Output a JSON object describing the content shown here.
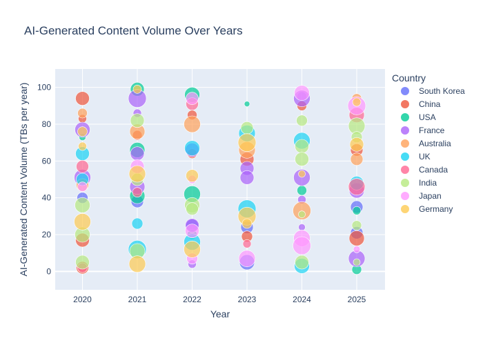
{
  "chart_data": {
    "type": "scatter",
    "title": "AI-Generated Content Volume Over Years",
    "xlabel": "Year",
    "ylabel": "AI-Generated Content Volume (TBs per year)",
    "x_categories": [
      "2020",
      "2021",
      "2022",
      "2023",
      "2024",
      "2025"
    ],
    "ylim": [
      -10,
      110
    ],
    "yticks": [
      0,
      20,
      40,
      60,
      80,
      100
    ],
    "grid": true,
    "legend_title": "Country",
    "legend_position": "right",
    "series": [
      {
        "name": "South Korea",
        "color": "#636efa",
        "points": [
          {
            "x": "2020",
            "y": 40,
            "size": 16
          },
          {
            "x": "2021",
            "y": 38,
            "size": 18
          },
          {
            "x": "2022",
            "y": 25,
            "size": 18
          },
          {
            "x": "2023",
            "y": 24,
            "size": 18
          },
          {
            "x": "2023",
            "y": 5,
            "size": 22
          },
          {
            "x": "2024",
            "y": 95,
            "size": 14
          },
          {
            "x": "2025",
            "y": 35,
            "size": 18
          },
          {
            "x": "2025",
            "y": 21,
            "size": 18
          }
        ]
      },
      {
        "name": "China",
        "color": "#ef553b",
        "points": [
          {
            "x": "2020",
            "y": 94,
            "size": 20
          },
          {
            "x": "2020",
            "y": 83,
            "size": 12
          },
          {
            "x": "2020",
            "y": 17,
            "size": 20
          },
          {
            "x": "2020",
            "y": 2,
            "size": 18
          },
          {
            "x": "2021",
            "y": 74,
            "size": 14
          },
          {
            "x": "2022",
            "y": 85,
            "size": 14
          },
          {
            "x": "2022",
            "y": 64,
            "size": 14
          },
          {
            "x": "2023",
            "y": 61,
            "size": 20
          },
          {
            "x": "2023",
            "y": 19,
            "size": 16
          },
          {
            "x": "2024",
            "y": 90,
            "size": 14
          },
          {
            "x": "2025",
            "y": 66,
            "size": 18
          },
          {
            "x": "2025",
            "y": 18,
            "size": 22
          }
        ]
      },
      {
        "name": "USA",
        "color": "#00cc96",
        "points": [
          {
            "x": "2020",
            "y": 73,
            "size": 10
          },
          {
            "x": "2021",
            "y": 99,
            "size": 20
          },
          {
            "x": "2021",
            "y": 66,
            "size": 22
          },
          {
            "x": "2021",
            "y": 41,
            "size": 22
          },
          {
            "x": "2022",
            "y": 96,
            "size": 22
          },
          {
            "x": "2022",
            "y": 42,
            "size": 24
          },
          {
            "x": "2022",
            "y": 20,
            "size": 14
          },
          {
            "x": "2023",
            "y": 91,
            "size": 8
          },
          {
            "x": "2024",
            "y": 44,
            "size": 14
          },
          {
            "x": "2025",
            "y": 33,
            "size": 12
          },
          {
            "x": "2025",
            "y": 1,
            "size": 14
          }
        ]
      },
      {
        "name": "France",
        "color": "#ab63fa",
        "points": [
          {
            "x": "2020",
            "y": 77,
            "size": 22
          },
          {
            "x": "2020",
            "y": 51,
            "size": 24
          },
          {
            "x": "2021",
            "y": 94,
            "size": 26
          },
          {
            "x": "2021",
            "y": 86,
            "size": 12
          },
          {
            "x": "2021",
            "y": 64,
            "size": 20
          },
          {
            "x": "2021",
            "y": 46,
            "size": 22
          },
          {
            "x": "2022",
            "y": 66,
            "size": 20
          },
          {
            "x": "2022",
            "y": 25,
            "size": 20
          },
          {
            "x": "2022",
            "y": 4,
            "size": 12
          },
          {
            "x": "2023",
            "y": 56,
            "size": 20
          },
          {
            "x": "2023",
            "y": 51,
            "size": 20
          },
          {
            "x": "2024",
            "y": 94,
            "size": 24
          },
          {
            "x": "2024",
            "y": 51,
            "size": 24
          },
          {
            "x": "2024",
            "y": 39,
            "size": 12
          },
          {
            "x": "2024",
            "y": 24,
            "size": 10
          },
          {
            "x": "2025",
            "y": 44,
            "size": 22
          },
          {
            "x": "2025",
            "y": 7,
            "size": 24
          }
        ]
      },
      {
        "name": "Australia",
        "color": "#ffa15a",
        "points": [
          {
            "x": "2020",
            "y": 86,
            "size": 14
          },
          {
            "x": "2020",
            "y": 47,
            "size": 18
          },
          {
            "x": "2021",
            "y": 76,
            "size": 22
          },
          {
            "x": "2022",
            "y": 80,
            "size": 24
          },
          {
            "x": "2023",
            "y": 66,
            "size": 24
          },
          {
            "x": "2024",
            "y": 33,
            "size": 26
          },
          {
            "x": "2025",
            "y": 94,
            "size": 14
          },
          {
            "x": "2025",
            "y": 61,
            "size": 18
          }
        ]
      },
      {
        "name": "UK",
        "color": "#19d3f3",
        "points": [
          {
            "x": "2020",
            "y": 64,
            "size": 20
          },
          {
            "x": "2020",
            "y": 50,
            "size": 18
          },
          {
            "x": "2021",
            "y": 26,
            "size": 16
          },
          {
            "x": "2021",
            "y": 12,
            "size": 26
          },
          {
            "x": "2022",
            "y": 67,
            "size": 22
          },
          {
            "x": "2022",
            "y": 16,
            "size": 24
          },
          {
            "x": "2023",
            "y": 75,
            "size": 24
          },
          {
            "x": "2023",
            "y": 34,
            "size": 26
          },
          {
            "x": "2024",
            "y": 71,
            "size": 24
          },
          {
            "x": "2024",
            "y": 3,
            "size": 22
          },
          {
            "x": "2025",
            "y": 48,
            "size": 20
          }
        ]
      },
      {
        "name": "Canada",
        "color": "#ff6692",
        "points": [
          {
            "x": "2020",
            "y": 57,
            "size": 18
          },
          {
            "x": "2020",
            "y": 2,
            "size": 14
          },
          {
            "x": "2021",
            "y": 43,
            "size": 14
          },
          {
            "x": "2022",
            "y": 91,
            "size": 18
          },
          {
            "x": "2023",
            "y": 15,
            "size": 12
          },
          {
            "x": "2025",
            "y": 85,
            "size": 22
          },
          {
            "x": "2025",
            "y": 46,
            "size": 24
          }
        ]
      },
      {
        "name": "India",
        "color": "#b6e880",
        "points": [
          {
            "x": "2020",
            "y": 36,
            "size": 22
          },
          {
            "x": "2020",
            "y": 20,
            "size": 22
          },
          {
            "x": "2020",
            "y": 5,
            "size": 20
          },
          {
            "x": "2021",
            "y": 82,
            "size": 20
          },
          {
            "x": "2021",
            "y": 50,
            "size": 18
          },
          {
            "x": "2021",
            "y": 11,
            "size": 22
          },
          {
            "x": "2022",
            "y": 36,
            "size": 22
          },
          {
            "x": "2022",
            "y": 34,
            "size": 18
          },
          {
            "x": "2023",
            "y": 78,
            "size": 18
          },
          {
            "x": "2024",
            "y": 82,
            "size": 16
          },
          {
            "x": "2024",
            "y": 68,
            "size": 20
          },
          {
            "x": "2024",
            "y": 61,
            "size": 20
          },
          {
            "x": "2024",
            "y": 31,
            "size": 10
          },
          {
            "x": "2024",
            "y": 5,
            "size": 20
          },
          {
            "x": "2025",
            "y": 79,
            "size": 24
          },
          {
            "x": "2025",
            "y": 73,
            "size": 16
          },
          {
            "x": "2025",
            "y": 25,
            "size": 14
          },
          {
            "x": "2025",
            "y": 5,
            "size": 10
          }
        ]
      },
      {
        "name": "Japan",
        "color": "#ff97ff",
        "points": [
          {
            "x": "2020",
            "y": 46,
            "size": 14
          },
          {
            "x": "2021",
            "y": 57,
            "size": 20
          },
          {
            "x": "2022",
            "y": 94,
            "size": 18
          },
          {
            "x": "2022",
            "y": 50,
            "size": 12
          },
          {
            "x": "2022",
            "y": 22,
            "size": 20
          },
          {
            "x": "2022",
            "y": 7,
            "size": 16
          },
          {
            "x": "2023",
            "y": 7,
            "size": 24
          },
          {
            "x": "2024",
            "y": 97,
            "size": 22
          },
          {
            "x": "2024",
            "y": 18,
            "size": 24
          },
          {
            "x": "2024",
            "y": 14,
            "size": 26
          },
          {
            "x": "2025",
            "y": 90,
            "size": 26
          },
          {
            "x": "2025",
            "y": 12,
            "size": 10
          }
        ]
      },
      {
        "name": "Germany",
        "color": "#fecb52",
        "points": [
          {
            "x": "2020",
            "y": 76,
            "size": 14
          },
          {
            "x": "2020",
            "y": 68,
            "size": 12
          },
          {
            "x": "2020",
            "y": 27,
            "size": 24
          },
          {
            "x": "2021",
            "y": 99,
            "size": 12
          },
          {
            "x": "2021",
            "y": 53,
            "size": 24
          },
          {
            "x": "2021",
            "y": 4,
            "size": 24
          },
          {
            "x": "2022",
            "y": 52,
            "size": 18
          },
          {
            "x": "2022",
            "y": 12,
            "size": 24
          },
          {
            "x": "2023",
            "y": 70,
            "size": 26
          },
          {
            "x": "2023",
            "y": 30,
            "size": 26
          },
          {
            "x": "2023",
            "y": 26,
            "size": 14
          },
          {
            "x": "2024",
            "y": 53,
            "size": 10
          },
          {
            "x": "2025",
            "y": 69,
            "size": 20
          },
          {
            "x": "2025",
            "y": 92,
            "size": 12
          }
        ]
      }
    ]
  }
}
